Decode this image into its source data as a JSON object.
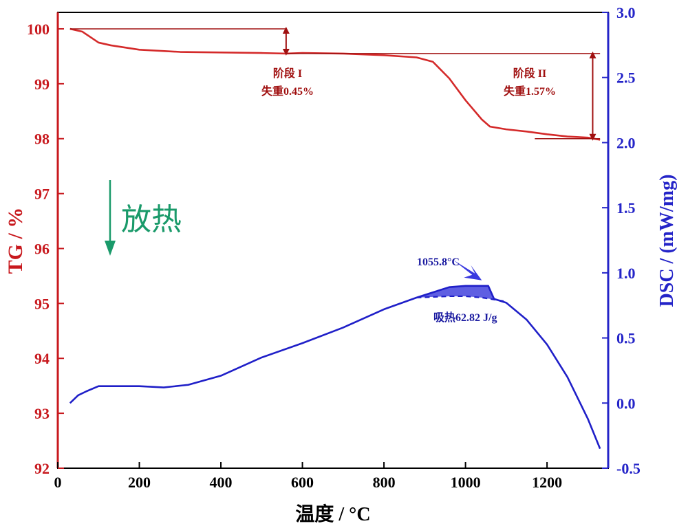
{
  "chart_data": {
    "type": "line",
    "xlabel": "温度 / °C",
    "y_left_label": "TG / %",
    "y_right_label": "DSC / (mW/mg)",
    "xlim": [
      0,
      1350
    ],
    "y_left_lim": [
      92,
      100.3
    ],
    "y_right_lim": [
      -0.5,
      3.0
    ],
    "x_ticks": [
      "0",
      "200",
      "400",
      "600",
      "800",
      "1000",
      "1200"
    ],
    "y_left_ticks": [
      "92",
      "93",
      "94",
      "95",
      "96",
      "97",
      "98",
      "99",
      "100"
    ],
    "y_right_ticks": [
      "-0.5",
      "0.0",
      "0.5",
      "1.0",
      "1.5",
      "2.0",
      "2.5",
      "3.0"
    ],
    "colors": {
      "tg": "#d42a2a",
      "dsc": "#1f1fc8",
      "exo_arrow": "#1a9a6a",
      "left_axis": "#c8191e",
      "right_axis": "#2424c8"
    },
    "series": [
      {
        "name": "TG",
        "axis": "left",
        "x": [
          30,
          60,
          80,
          100,
          130,
          200,
          300,
          400,
          500,
          560,
          600,
          700,
          800,
          880,
          920,
          960,
          1000,
          1040,
          1060,
          1100,
          1150,
          1200,
          1250,
          1300,
          1330
        ],
        "y": [
          100.0,
          99.95,
          99.85,
          99.75,
          99.7,
          99.62,
          99.58,
          99.57,
          99.56,
          99.55,
          99.56,
          99.55,
          99.52,
          99.48,
          99.4,
          99.1,
          98.7,
          98.35,
          98.22,
          98.17,
          98.13,
          98.08,
          98.04,
          98.02,
          97.98
        ]
      },
      {
        "name": "DSC",
        "axis": "right",
        "x": [
          30,
          50,
          70,
          100,
          130,
          200,
          260,
          320,
          400,
          500,
          600,
          700,
          800,
          880,
          920,
          960,
          1000,
          1040,
          1055.8,
          1070,
          1100,
          1150,
          1200,
          1250,
          1300,
          1330
        ],
        "y": [
          0.0,
          0.06,
          0.09,
          0.13,
          0.13,
          0.13,
          0.12,
          0.14,
          0.21,
          0.35,
          0.46,
          0.58,
          0.72,
          0.81,
          0.85,
          0.89,
          0.9,
          0.9,
          0.9,
          0.8,
          0.77,
          0.64,
          0.45,
          0.2,
          -0.12,
          -0.35
        ]
      }
    ],
    "dsc_baseline": {
      "x": [
        880,
        960,
        1000,
        1040,
        1100
      ],
      "y": [
        0.81,
        0.82,
        0.82,
        0.81,
        0.78
      ]
    },
    "tg_levels": {
      "start": 100.0,
      "stage1_end": 99.55,
      "stage2_end": 98.0
    },
    "annotations": {
      "stage1_name": "阶段 I",
      "stage1_loss": "失重0.45%",
      "stage2_name": "阶段 II",
      "stage2_loss": "失重1.57%",
      "peak_temp": "1055.8°C",
      "endo": "吸热62.82 J/g",
      "exo": "放热"
    }
  }
}
